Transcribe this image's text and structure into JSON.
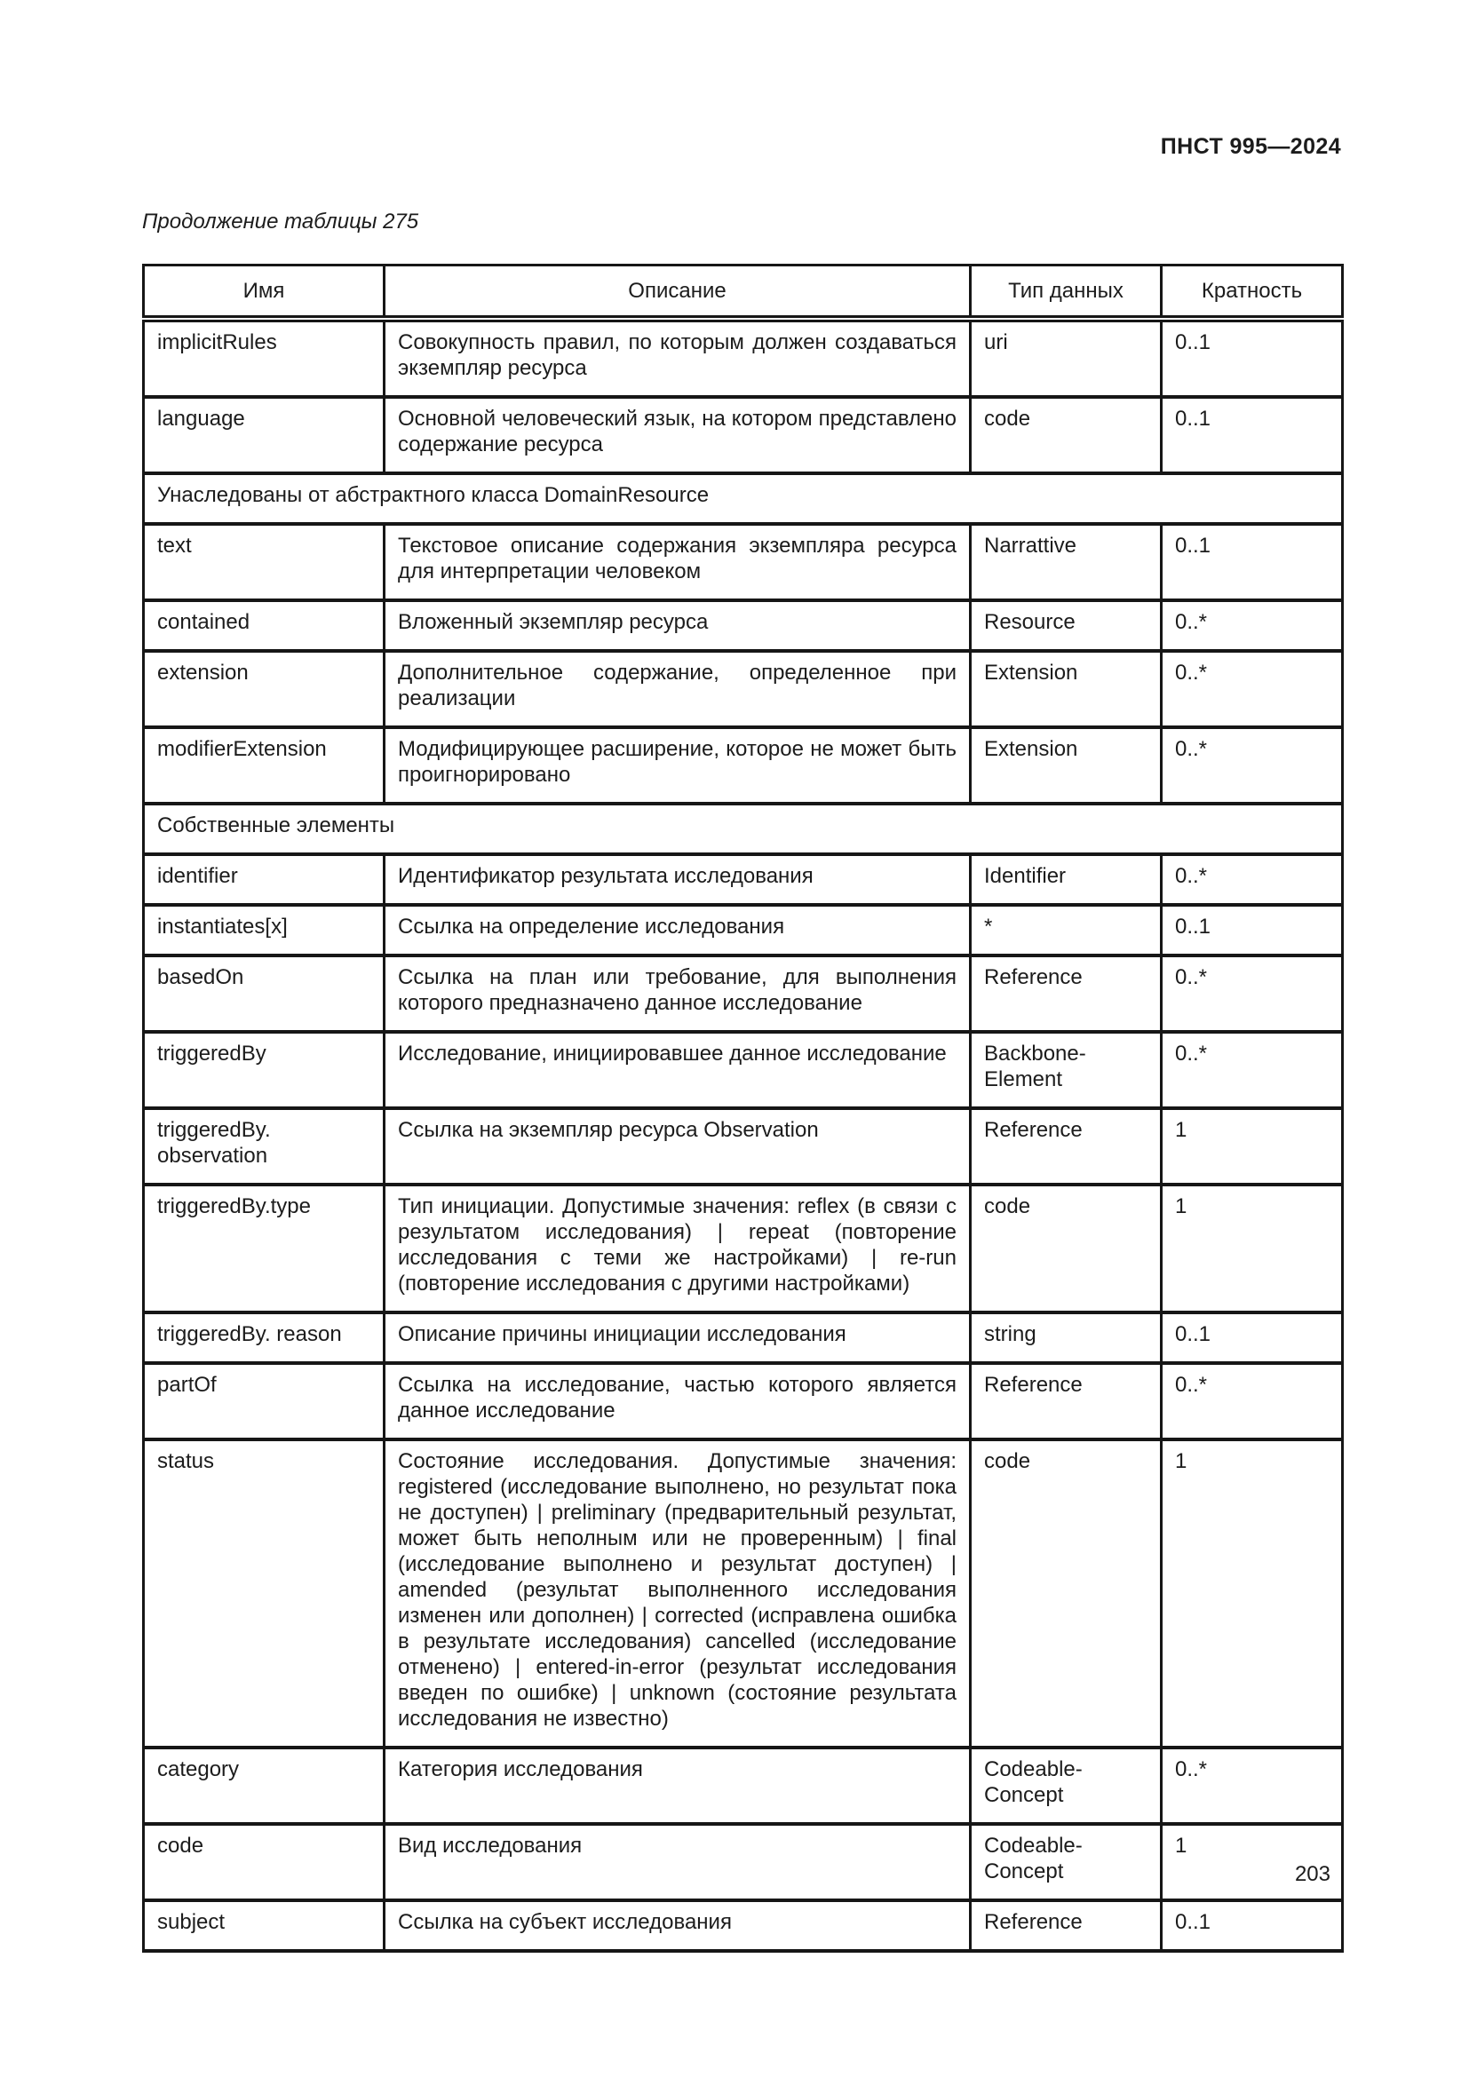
{
  "page": {
    "header_right": "ПНСТ 995—2024",
    "table_caption": "Продолжение таблицы 275",
    "page_number": "203"
  },
  "colors": {
    "ink": "#1c1c1c",
    "border": "#161616",
    "paper": "#ffffff"
  },
  "table": {
    "columns": [
      "Имя",
      "Описание",
      "Тип данных",
      "Кратность"
    ],
    "rows": [
      {
        "type": "data",
        "name": "implicitRules",
        "description": "Совокупность правил, по которым должен создаваться экземпляр ресурса",
        "datatype": "uri",
        "cardinality": "0..1"
      },
      {
        "type": "data",
        "name": "language",
        "description": "Основной человеческий язык, на котором представлено содержание ресурса",
        "datatype": "code",
        "cardinality": "0..1"
      },
      {
        "type": "section",
        "label": "Унаследованы от абстрактного класса DomainResource"
      },
      {
        "type": "data",
        "name": "text",
        "description": "Текстовое описание содержания экземпляра ресурса для интерпретации человеком",
        "datatype": "Narrattive",
        "cardinality": "0..1"
      },
      {
        "type": "data",
        "name": "contained",
        "description": "Вложенный экземпляр ресурса",
        "datatype": "Resource",
        "cardinality": "0..*"
      },
      {
        "type": "data",
        "name": "extension",
        "description": "Дополнительное содержание, определенное при реализации",
        "datatype": "Extension",
        "cardinality": "0..*"
      },
      {
        "type": "data",
        "name": "modifierExtension",
        "description": "Модифицирующее расширение, которое не может быть проигнорировано",
        "datatype": "Extension",
        "cardinality": "0..*"
      },
      {
        "type": "section",
        "label": "Собственные элементы"
      },
      {
        "type": "data",
        "name": "identifier",
        "description": "Идентификатор результата исследования",
        "datatype": "Identifier",
        "cardinality": "0..*"
      },
      {
        "type": "data",
        "name": "instantiates[x]",
        "description": "Ссылка на определение исследования",
        "datatype": "*",
        "cardinality": "0..1"
      },
      {
        "type": "data",
        "name": "basedOn",
        "description": "Ссылка на план или требование, для выполнения которого предназначено данное исследование",
        "datatype": "Reference",
        "cardinality": "0..*"
      },
      {
        "type": "data",
        "name": "triggeredBy",
        "description": "Исследование, инициировавшее данное исследование",
        "datatype": "Backbone-Element",
        "cardinality": "0..*"
      },
      {
        "type": "data",
        "name": "triggeredBy. observation",
        "description": "Ссылка на экземпляр ресурса Observation",
        "datatype": "Reference",
        "cardinality": "1"
      },
      {
        "type": "data",
        "name": "triggeredBy.type",
        "description": "Тип инициации. Допустимые значения: reflex (в связи с результатом исследования) | repeat (повторение исследования с теми же настройками) | re-run (повторение исследования с другими настройками)",
        "datatype": "code",
        "cardinality": "1"
      },
      {
        "type": "data",
        "name": "triggeredBy. reason",
        "description": "Описание причины инициации исследования",
        "datatype": "string",
        "cardinality": "0..1"
      },
      {
        "type": "data",
        "name": "partOf",
        "description": "Ссылка на исследование, частью которого является данное исследование",
        "datatype": "Reference",
        "cardinality": "0..*"
      },
      {
        "type": "data",
        "name": "status",
        "description": "Состояние исследования. Допустимые значения: registered (исследование выполнено, но результат пока не доступен) | preliminary (предварительный результат, может быть неполным или не проверенным) | final (исследование выполнено и результат доступен) | amended (результат выполненного исследования изменен или дополнен) | corrected (исправлена ошибка в результате исследования) cancelled (исследование отменено) | entered-in-error (результат исследования введен по ошибке) | unknown (состояние результата исследования не известно)",
        "datatype": "code",
        "cardinality": "1"
      },
      {
        "type": "data",
        "name": "category",
        "description": "Категория исследования",
        "datatype": "Codeable-Concept",
        "cardinality": "0..*"
      },
      {
        "type": "data",
        "name": "code",
        "description": "Вид исследования",
        "datatype": "Codeable-Concept",
        "cardinality": "1"
      },
      {
        "type": "data",
        "name": "subject",
        "description": "Ссылка на субъект исследования",
        "datatype": "Reference",
        "cardinality": "0..1"
      }
    ]
  }
}
